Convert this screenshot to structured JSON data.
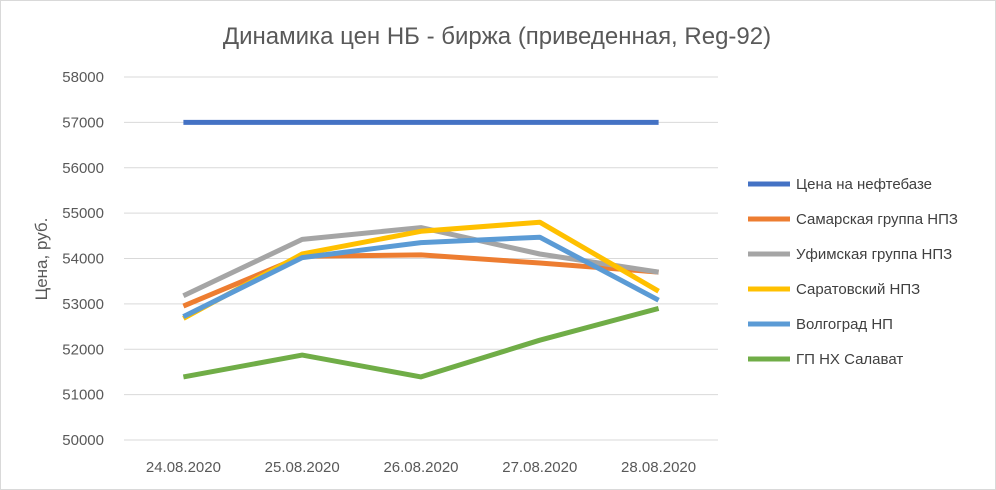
{
  "chart_data": {
    "type": "line",
    "title": "Динамика цен НБ - биржа (приведенная, Reg-92)",
    "xlabel": "",
    "ylabel": "Цена, руб.",
    "categories": [
      "24.08.2020",
      "25.08.2020",
      "26.08.2020",
      "27.08.2020",
      "28.08.2020"
    ],
    "ylim": [
      50000,
      58000
    ],
    "yticks": [
      "50000",
      "51000",
      "52000",
      "53000",
      "54000",
      "55000",
      "56000",
      "57000",
      "58000"
    ],
    "grid": true,
    "legend_position": "right",
    "series": [
      {
        "name": "Цена на нефтебазе",
        "color": "#4472C4",
        "values": [
          57000,
          57000,
          57000,
          57000,
          57000
        ]
      },
      {
        "name": "Самарская группа НПЗ",
        "color": "#ED7D31",
        "values": [
          52950,
          54050,
          54080,
          53900,
          53700
        ]
      },
      {
        "name": "Уфимская группа НПЗ",
        "color": "#A5A5A5",
        "values": [
          53180,
          54420,
          54680,
          54100,
          53700
        ]
      },
      {
        "name": "Саратовский НПЗ",
        "color": "#FFC000",
        "values": [
          52680,
          54100,
          54600,
          54800,
          53280
        ]
      },
      {
        "name": "Волгоград НП",
        "color": "#5B9BD5",
        "values": [
          52720,
          54020,
          54350,
          54470,
          53080
        ]
      },
      {
        "name": "ГП НХ Салават",
        "color": "#70AD47",
        "values": [
          51390,
          51870,
          51390,
          52200,
          52900
        ]
      }
    ]
  }
}
